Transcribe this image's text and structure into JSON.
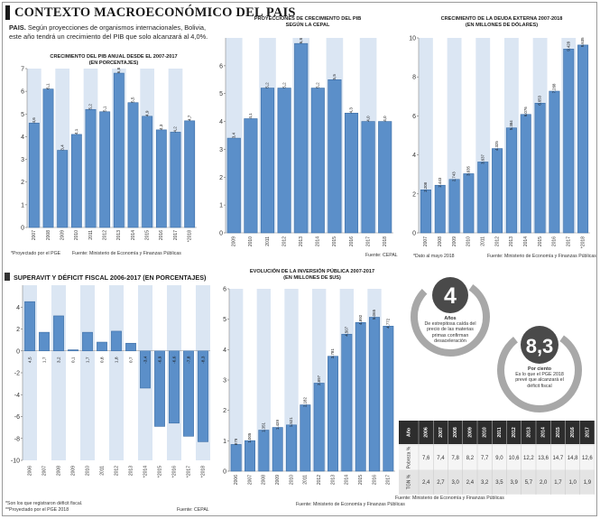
{
  "header": {
    "title": "CONTEXTO MACROECONÓMICO DEL PAIS",
    "intro_bold": "PAIS.",
    "intro": " Según proyecciones de organismos internacionales, Bolivia, este año tendrá un crecimiento del PIB que solo alcanzará al 4,0%."
  },
  "colors": {
    "bar": "#5b8fc9",
    "bar_stroke": "#3d6ea6",
    "band": "#dbe6f3",
    "negative": "#5b8fc9",
    "circle": "#a8a8a8",
    "dark": "#333333"
  },
  "chart_data": [
    {
      "id": "pib",
      "type": "bar",
      "title": "CRECIMIENTO DEL PIB ANUAL DESDE EL 2007-2017",
      "subtitle": "(EN PORCENTAJES)",
      "categories": [
        "2007",
        "2008",
        "2009",
        "2010",
        "2011",
        "2012",
        "2013",
        "2014",
        "2015",
        "2016",
        "2017",
        "*2018"
      ],
      "values": [
        4.6,
        6.1,
        3.4,
        4.1,
        5.2,
        5.1,
        6.8,
        5.5,
        4.9,
        4.3,
        4.2,
        4.7
      ],
      "labels": [
        "4,6",
        "6,1",
        "3,4",
        "4,1",
        "5,2",
        "5,1",
        "6,8",
        "5,5",
        "4,9",
        "4,3",
        "4,2",
        "4,7"
      ],
      "ylim": [
        0,
        7
      ],
      "yticks": [
        0,
        1,
        2,
        3,
        4,
        5,
        6,
        7
      ],
      "footnote": "*Proyectado por el PGE",
      "source": "Fuente: Ministerio de Economía y Finanzas Públicas"
    },
    {
      "id": "proy",
      "type": "bar",
      "title": "PROYECCIONES DE CRECIMIENTO DEL PIB",
      "subtitle": "SEGÚN LA CEPAL",
      "categories": [
        "2009",
        "2010",
        "2011",
        "2012",
        "2013",
        "2014",
        "2015",
        "2016",
        "2017",
        "2018"
      ],
      "values": [
        3.4,
        4.1,
        5.2,
        5.2,
        6.8,
        5.2,
        5.5,
        4.3,
        4.0,
        4.0
      ],
      "labels": [
        "3,4",
        "4,1",
        "5,2",
        "5,2",
        "6,8",
        "5,2",
        "5,5",
        "4,3",
        "4,0",
        "4,0"
      ],
      "ylim": [
        0,
        7
      ],
      "yticks": [
        0,
        1,
        2,
        3,
        4,
        5,
        6
      ],
      "source": "Fuente: CEPAL"
    },
    {
      "id": "deuda",
      "type": "bar",
      "title": "CRECIMIENTO DE LA DEUDA EXTERNA 2007-2018",
      "subtitle": "(EN MILLONES DE DÓLARES)",
      "categories": [
        "2007",
        "2008",
        "2009",
        "2010",
        "2011",
        "2012",
        "2013",
        "2014",
        "2015",
        "2016",
        "2017",
        "*2018"
      ],
      "values": [
        2208,
        2443,
        2743,
        3035,
        3637,
        4325,
        5384,
        6076,
        6653,
        7268,
        9428,
        9635
      ],
      "labels": [
        "2.208",
        "2.443",
        "2.743",
        "3.035",
        "3.637",
        "4.325",
        "5.384",
        "6.076",
        "6.653",
        "7.268",
        "9.428",
        "9.635"
      ],
      "ylim": [
        0,
        10
      ],
      "yticks": [
        0,
        2,
        4,
        6,
        8,
        10
      ],
      "footnote": "*Dato al mayo 2018",
      "source": "Fuente: Ministerio de Economía y Finanzas Públicas"
    },
    {
      "id": "fiscal",
      "type": "bar",
      "title": "SUPERAVIT Y DÉFICIT FISCAL 2006-2017 (EN PORCENTAJES)",
      "categories": [
        "2006",
        "2007",
        "2008",
        "2009",
        "2010",
        "2011",
        "2012",
        "2013",
        "*2014",
        "*2015",
        "*2016",
        "*2017",
        "*2018"
      ],
      "values": [
        4.5,
        1.7,
        3.2,
        0.1,
        1.7,
        0.8,
        1.8,
        0.7,
        -3.4,
        -6.9,
        -6.6,
        -7.8,
        -8.3
      ],
      "labels": [
        "4,5",
        "1,7",
        "3,2",
        "0,1",
        "1,7",
        "0,8",
        "1,8",
        "0,7",
        "-3,4",
        "-6,9",
        "-6,6",
        "-7,8",
        "-8,3"
      ],
      "ylim": [
        -10,
        6
      ],
      "yticks": [
        -10,
        -8,
        -6,
        -4,
        -2,
        0,
        2,
        4
      ],
      "footnote1": "*Son los que registraron déficit fiscal.",
      "footnote2": "**Proyectado por el PGE 2018",
      "source": "Fuente: CEPAL"
    },
    {
      "id": "inversion",
      "type": "bar",
      "title": "EVOLUCIÓN DE LA INVERSIÓN PÚBLICA 2007-2017",
      "subtitle": "(EN MILLONES DE $US)",
      "categories": [
        "2006",
        "2007",
        "2008",
        "2009",
        "2010",
        "2011",
        "2012",
        "2013",
        "2014",
        "2015",
        "2016",
        "2017"
      ],
      "values": [
        879,
        1005,
        1351,
        1439,
        1521,
        2182,
        2897,
        3781,
        4507,
        4892,
        5065,
        4772
      ],
      "labels": [
        "879",
        "1.005",
        "1.351",
        "1.439",
        "1.521",
        "2.182",
        "2.897",
        "3.781",
        "4.507",
        "4.892",
        "5.065",
        "4.772"
      ],
      "ylim": [
        0,
        6
      ],
      "yticks": [
        0,
        1,
        2,
        3,
        4,
        5,
        6
      ],
      "source": "Fuente: Ministerio de Economía y Finanzas Públicas"
    }
  ],
  "circles": [
    {
      "value": "4",
      "head": "Años",
      "text": "De estrepitosa caída del precio de las materias primas confirman desaceleración"
    },
    {
      "value": "8,3",
      "head": "Por ciento",
      "text": "Es lo que el PGE 2018 prevé que alcanzará el déficit fiscal"
    }
  ],
  "table": {
    "header_label": "Año",
    "years": [
      "2006",
      "2007",
      "2008",
      "2009",
      "2010",
      "2011",
      "2012",
      "2013",
      "2014",
      "2015",
      "2016",
      "2017"
    ],
    "rows": [
      {
        "label": "Pobreza %",
        "values": [
          "7,6",
          "7,4",
          "7,8",
          "8,2",
          "7,7",
          "9,0",
          "10,6",
          "12,2",
          "13,6",
          "14,7",
          "14,8",
          "12,6"
        ]
      },
      {
        "label": "TGN %",
        "values": [
          "2,4",
          "2,7",
          "3,0",
          "2,4",
          "3,2",
          "3,5",
          "3,9",
          "5,7",
          "2,0",
          "1,7",
          "1,0",
          "1,9"
        ]
      }
    ],
    "source": "Fuente: Ministerio de Economía y Finanzas Públicas"
  }
}
